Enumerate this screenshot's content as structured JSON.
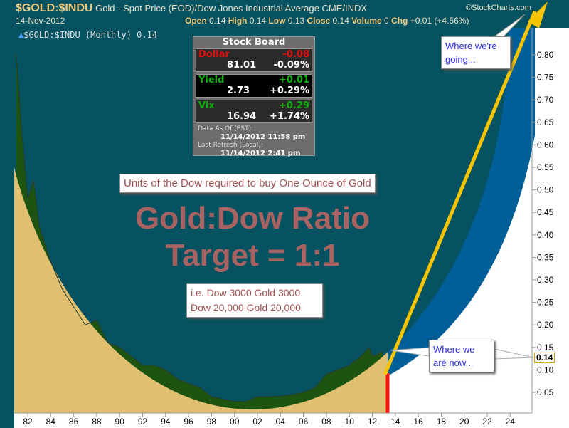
{
  "header": {
    "symbol": "$GOLD:$INDU",
    "description": "Gold - Spot Price (EOD)/Dow Jones Industrial Average",
    "exchange": "CME/INDX",
    "brand": "©StockCharts.com",
    "date": "14-Nov-2012",
    "open_label": "Open",
    "open": "0.14",
    "high_label": "High",
    "high": "0.14",
    "low_label": "Low",
    "low": "0.13",
    "close_label": "Close",
    "close": "0.14",
    "volume_label": "Volume",
    "volume": "0",
    "chg_label": "Chg",
    "chg": "+0.01 (+4.56%)",
    "legend": "$GOLD:$INDU (Monthly) 0.14"
  },
  "stock_board": {
    "title": "Stock Board",
    "rows": [
      {
        "name": "Dollar",
        "change": "-0.08",
        "value": "81.01",
        "pct": "-0.09%",
        "color": "#e01010"
      },
      {
        "name": "Yield",
        "change": "+0.01",
        "value": "2.73",
        "pct": "+0.29%",
        "color": "#10b010"
      },
      {
        "name": "Vix",
        "change": "+0.29",
        "value": "16.94",
        "pct": "+1.74%",
        "color": "#10b010"
      }
    ],
    "data_as_of_label": "Data As Of (EST):",
    "data_as_of": "11/14/2012 11:58 pm",
    "last_refresh_label": "Last Refresh (Local):",
    "last_refresh": "11/14/2012 2:41 pm"
  },
  "annotations": {
    "units": "Units of the Dow required to buy One Ounce of Gold",
    "title1": "Gold:Dow Ratio",
    "title2": "Target = 1:1",
    "example1": "i.e. Dow 3000 Gold 3000",
    "example2": "Dow 20,000 Gold 20,000",
    "going1": "Where we're",
    "going2": "going...",
    "now1": "Where we",
    "now2": "are now...",
    "last_value": "0.14"
  },
  "chart_data": {
    "type": "area",
    "title": "$GOLD:$INDU (Monthly)",
    "xlabel": "",
    "ylabel": "",
    "x_ticks": [
      "82",
      "84",
      "86",
      "88",
      "90",
      "92",
      "94",
      "96",
      "98",
      "00",
      "02",
      "04",
      "06",
      "08",
      "10",
      "12",
      "14",
      "16",
      "18",
      "20",
      "22",
      "24"
    ],
    "y_ticks": [
      "0.05",
      "0.10",
      "0.15",
      "0.20",
      "0.25",
      "0.30",
      "0.35",
      "0.40",
      "0.45",
      "0.50",
      "0.55",
      "0.60",
      "0.65",
      "0.70",
      "0.75",
      "0.80"
    ],
    "ylim": [
      0,
      0.83
    ],
    "xlim": [
      1981,
      2025.5
    ],
    "series": [
      {
        "name": "$GOLD:$INDU",
        "x": [
          1981,
          1981.5,
          1982,
          1982.5,
          1983,
          1984,
          1985,
          1986,
          1987,
          1988,
          1989,
          1990,
          1991,
          1992,
          1993,
          1994,
          1995,
          1996,
          1997,
          1998,
          1999,
          2000,
          2001,
          2002,
          2003,
          2004,
          2005,
          2006,
          2007,
          2008,
          2009,
          2010,
          2011,
          2011.7,
          2012,
          2012.9
        ],
        "values": [
          0.8,
          0.62,
          0.48,
          0.52,
          0.42,
          0.34,
          0.28,
          0.24,
          0.2,
          0.21,
          0.16,
          0.15,
          0.13,
          0.11,
          0.11,
          0.1,
          0.08,
          0.07,
          0.06,
          0.04,
          0.035,
          0.03,
          0.03,
          0.04,
          0.04,
          0.042,
          0.045,
          0.05,
          0.06,
          0.09,
          0.1,
          0.11,
          0.13,
          0.15,
          0.13,
          0.14
        ]
      }
    ],
    "target_line": {
      "from": [
        2013.1,
        0.09
      ],
      "to": [
        2025.5,
        0.93
      ],
      "color": "#f5c400"
    },
    "colors": {
      "area": "#1d5410",
      "below": "#e0c070",
      "ellipse": "#075260",
      "ring": "#005f98",
      "now_marker": "#ff1010"
    }
  }
}
